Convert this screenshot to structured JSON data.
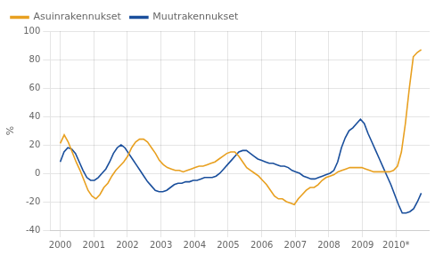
{
  "chart_data": {
    "type": "line",
    "ylabel": "%",
    "xlim": [
      1999.7,
      2011.0
    ],
    "xticks": [
      2000,
      2001,
      2002,
      2003,
      2004,
      2005,
      2006,
      2007,
      2008,
      2009,
      {
        "value": 2010,
        "label": "2010*"
      }
    ],
    "ylim": [
      -40,
      100
    ],
    "yticks": [
      -40,
      -20,
      0,
      20,
      40,
      60,
      80,
      100
    ],
    "grid": true,
    "legend": "upper left",
    "series": [
      {
        "name": "Asuinrakennukset",
        "color": "#E8A020",
        "x": [
          2000,
          2000.1181,
          2000.2363,
          2000.3544,
          2000.4725,
          2000.5907,
          2000.7088,
          2000.8269,
          2000.9451,
          2001.0632,
          2001.1813,
          2001.2995,
          2001.4176,
          2001.5357,
          2001.6538,
          2001.772,
          2001.8901,
          2002.0082,
          2002.1264,
          2002.2445,
          2002.3626,
          2002.4808,
          2002.5989,
          2002.717,
          2002.8352,
          2002.9533,
          2003.0714,
          2003.1896,
          2003.3077,
          2003.4258,
          2003.544,
          2003.6621,
          2003.7802,
          2003.8984,
          2004.0165,
          2004.1346,
          2004.2527,
          2004.3709,
          2004.489,
          2004.6071,
          2004.7253,
          2004.8434,
          2004.9615,
          2005.0797,
          2005.1978,
          2005.3159,
          2005.4341,
          2005.5522,
          2005.6703,
          2005.7885,
          2005.9066,
          2006.0247,
          2006.1429,
          2006.261,
          2006.3791,
          2006.4973,
          2006.6154,
          2006.7335,
          2006.8516,
          2006.9698,
          2007.0879,
          2007.206,
          2007.3242,
          2007.4423,
          2007.5604,
          2007.6786,
          2007.7967,
          2007.9148,
          2008.033,
          2008.1511,
          2008.2692,
          2008.3874,
          2008.5055,
          2008.6236,
          2008.7418,
          2008.8599,
          2008.978,
          2009.0962,
          2009.2143,
          2009.3324,
          2009.4505,
          2009.5687,
          2009.6868,
          2009.8049,
          2009.9231,
          2010.0412,
          2010.1593,
          2010.2775,
          2010.3956,
          2010.5137,
          2010.6319,
          2010.75
        ],
        "values": [
          21,
          27,
          22,
          15,
          8,
          2,
          -5,
          -12,
          -16,
          -18,
          -15,
          -10,
          -7,
          -2,
          2,
          5,
          8,
          12,
          18,
          22,
          24,
          24,
          22,
          18,
          14,
          9,
          6,
          4,
          3,
          2,
          2,
          1,
          2,
          3,
          4,
          5,
          5,
          6,
          7,
          8,
          10,
          12,
          14,
          15,
          15,
          12,
          8,
          4,
          2,
          0,
          -2,
          -5,
          -8,
          -12,
          -16,
          -18,
          -18,
          -20,
          -21,
          -22,
          -18,
          -15,
          -12,
          -10,
          -10,
          -8,
          -5,
          -3,
          -2,
          -1,
          1,
          2,
          3,
          4,
          4,
          4,
          4,
          3,
          2,
          1,
          1,
          1,
          1,
          1,
          2,
          5,
          15,
          35,
          60,
          82,
          85,
          87
        ]
      },
      {
        "name": "Muutrakennukset",
        "color": "#1A4F9C",
        "x": [
          2000,
          2000.1132,
          2000.2263,
          2000.3395,
          2000.4526,
          2000.5658,
          2000.6789,
          2000.7921,
          2000.9053,
          2001.0184,
          2001.1316,
          2001.2447,
          2001.3579,
          2001.4711,
          2001.5842,
          2001.6974,
          2001.8105,
          2001.9237,
          2002.0368,
          2002.15,
          2002.2632,
          2002.3763,
          2002.4895,
          2002.6026,
          2002.7158,
          2002.8289,
          2002.9421,
          2003.0553,
          2003.1684,
          2003.2816,
          2003.3947,
          2003.5079,
          2003.6211,
          2003.7342,
          2003.8474,
          2003.9605,
          2004.0737,
          2004.1868,
          2004.3,
          2004.4132,
          2004.5263,
          2004.6395,
          2004.7526,
          2004.8658,
          2004.9789,
          2005.0921,
          2005.2053,
          2005.3184,
          2005.4316,
          2005.5447,
          2005.6579,
          2005.7711,
          2005.8842,
          2005.9974,
          2006.1105,
          2006.2237,
          2006.3368,
          2006.45,
          2006.5632,
          2006.6763,
          2006.7895,
          2006.9026,
          2007.0158,
          2007.1289,
          2007.2421,
          2007.3553,
          2007.4684,
          2007.5816,
          2007.6947,
          2007.8079,
          2007.9211,
          2008.0342,
          2008.1474,
          2008.2605,
          2008.3737,
          2008.4868,
          2008.6,
          2008.7132,
          2008.8263,
          2008.9395,
          2009.0526,
          2009.1658,
          2009.2789,
          2009.3921,
          2009.5053,
          2009.6184,
          2009.7316,
          2009.8447,
          2009.9579,
          2010.0711,
          2010.1842,
          2010.2974,
          2010.4105,
          2010.5237,
          2010.6368,
          2010.75
        ],
        "values": [
          8,
          15,
          18,
          17,
          14,
          8,
          2,
          -3,
          -5,
          -5,
          -3,
          0,
          3,
          8,
          14,
          18,
          20,
          18,
          14,
          10,
          6,
          2,
          -2,
          -6,
          -9,
          -12,
          -13,
          -13,
          -12,
          -10,
          -8,
          -7,
          -7,
          -6,
          -6,
          -5,
          -5,
          -4,
          -3,
          -3,
          -3,
          -2,
          0,
          3,
          6,
          9,
          12,
          15,
          16,
          16,
          14,
          12,
          10,
          9,
          8,
          7,
          7,
          6,
          5,
          5,
          4,
          2,
          1,
          0,
          -2,
          -3,
          -4,
          -4,
          -3,
          -2,
          -1,
          0,
          2,
          8,
          18,
          25,
          30,
          32,
          35,
          38,
          35,
          28,
          22,
          16,
          10,
          4,
          -2,
          -8,
          -15,
          -22,
          -28,
          -28,
          -27,
          -25,
          -20,
          -14
        ]
      }
    ]
  }
}
